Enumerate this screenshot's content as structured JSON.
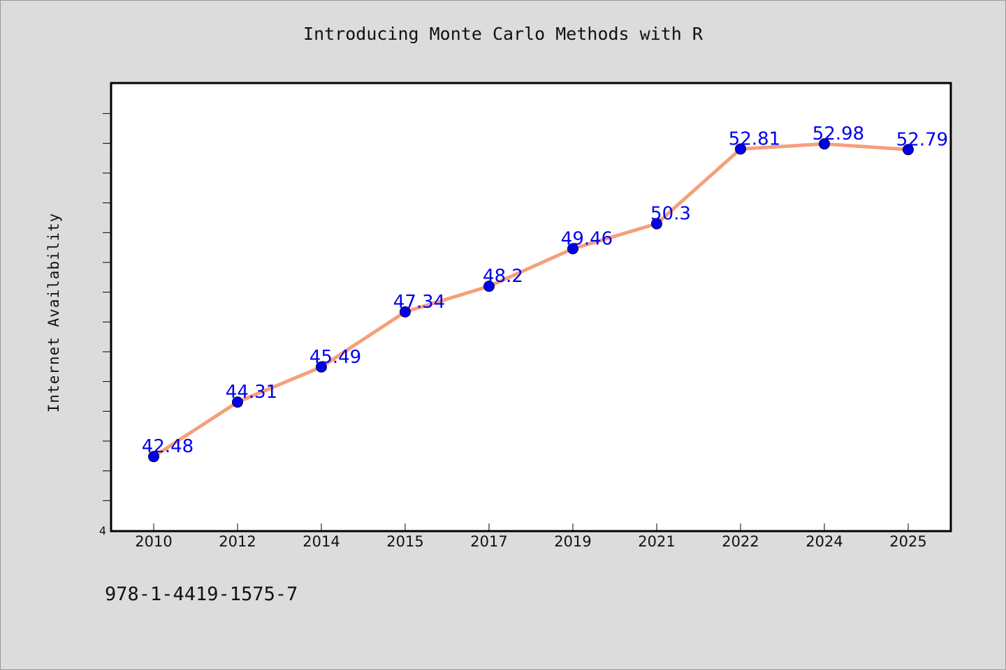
{
  "chart_data": {
    "type": "line",
    "title": "Introducing Monte Carlo Methods with R",
    "xlabel": "",
    "ylabel": "Internet Availability",
    "categories": [
      "2010",
      "2012",
      "2014",
      "2015",
      "2017",
      "2019",
      "2021",
      "2022",
      "2024",
      "2025"
    ],
    "series": [
      {
        "values": [
          42.48,
          44.31,
          45.49,
          47.34,
          48.2,
          49.46,
          50.3,
          52.81,
          52.98,
          52.79
        ],
        "labels": [
          "42.48",
          "44.31",
          "45.49",
          "47.34",
          "48.2",
          "49.46",
          "50.3",
          "52.81",
          "52.98",
          "52.79"
        ],
        "line_color": "#f4a07c",
        "marker_color": "#0000ee",
        "label_color": "#0000ee"
      }
    ],
    "ylim": [
      40,
      55
    ],
    "y_tick_labels": [
      "4"
    ],
    "grid": false,
    "legend": "none"
  },
  "footer": {
    "code": "978-1-4419-1575-7"
  },
  "colors": {
    "background": "#dcdcdc",
    "plot_background": "#ffffff",
    "axis": "#000000"
  }
}
